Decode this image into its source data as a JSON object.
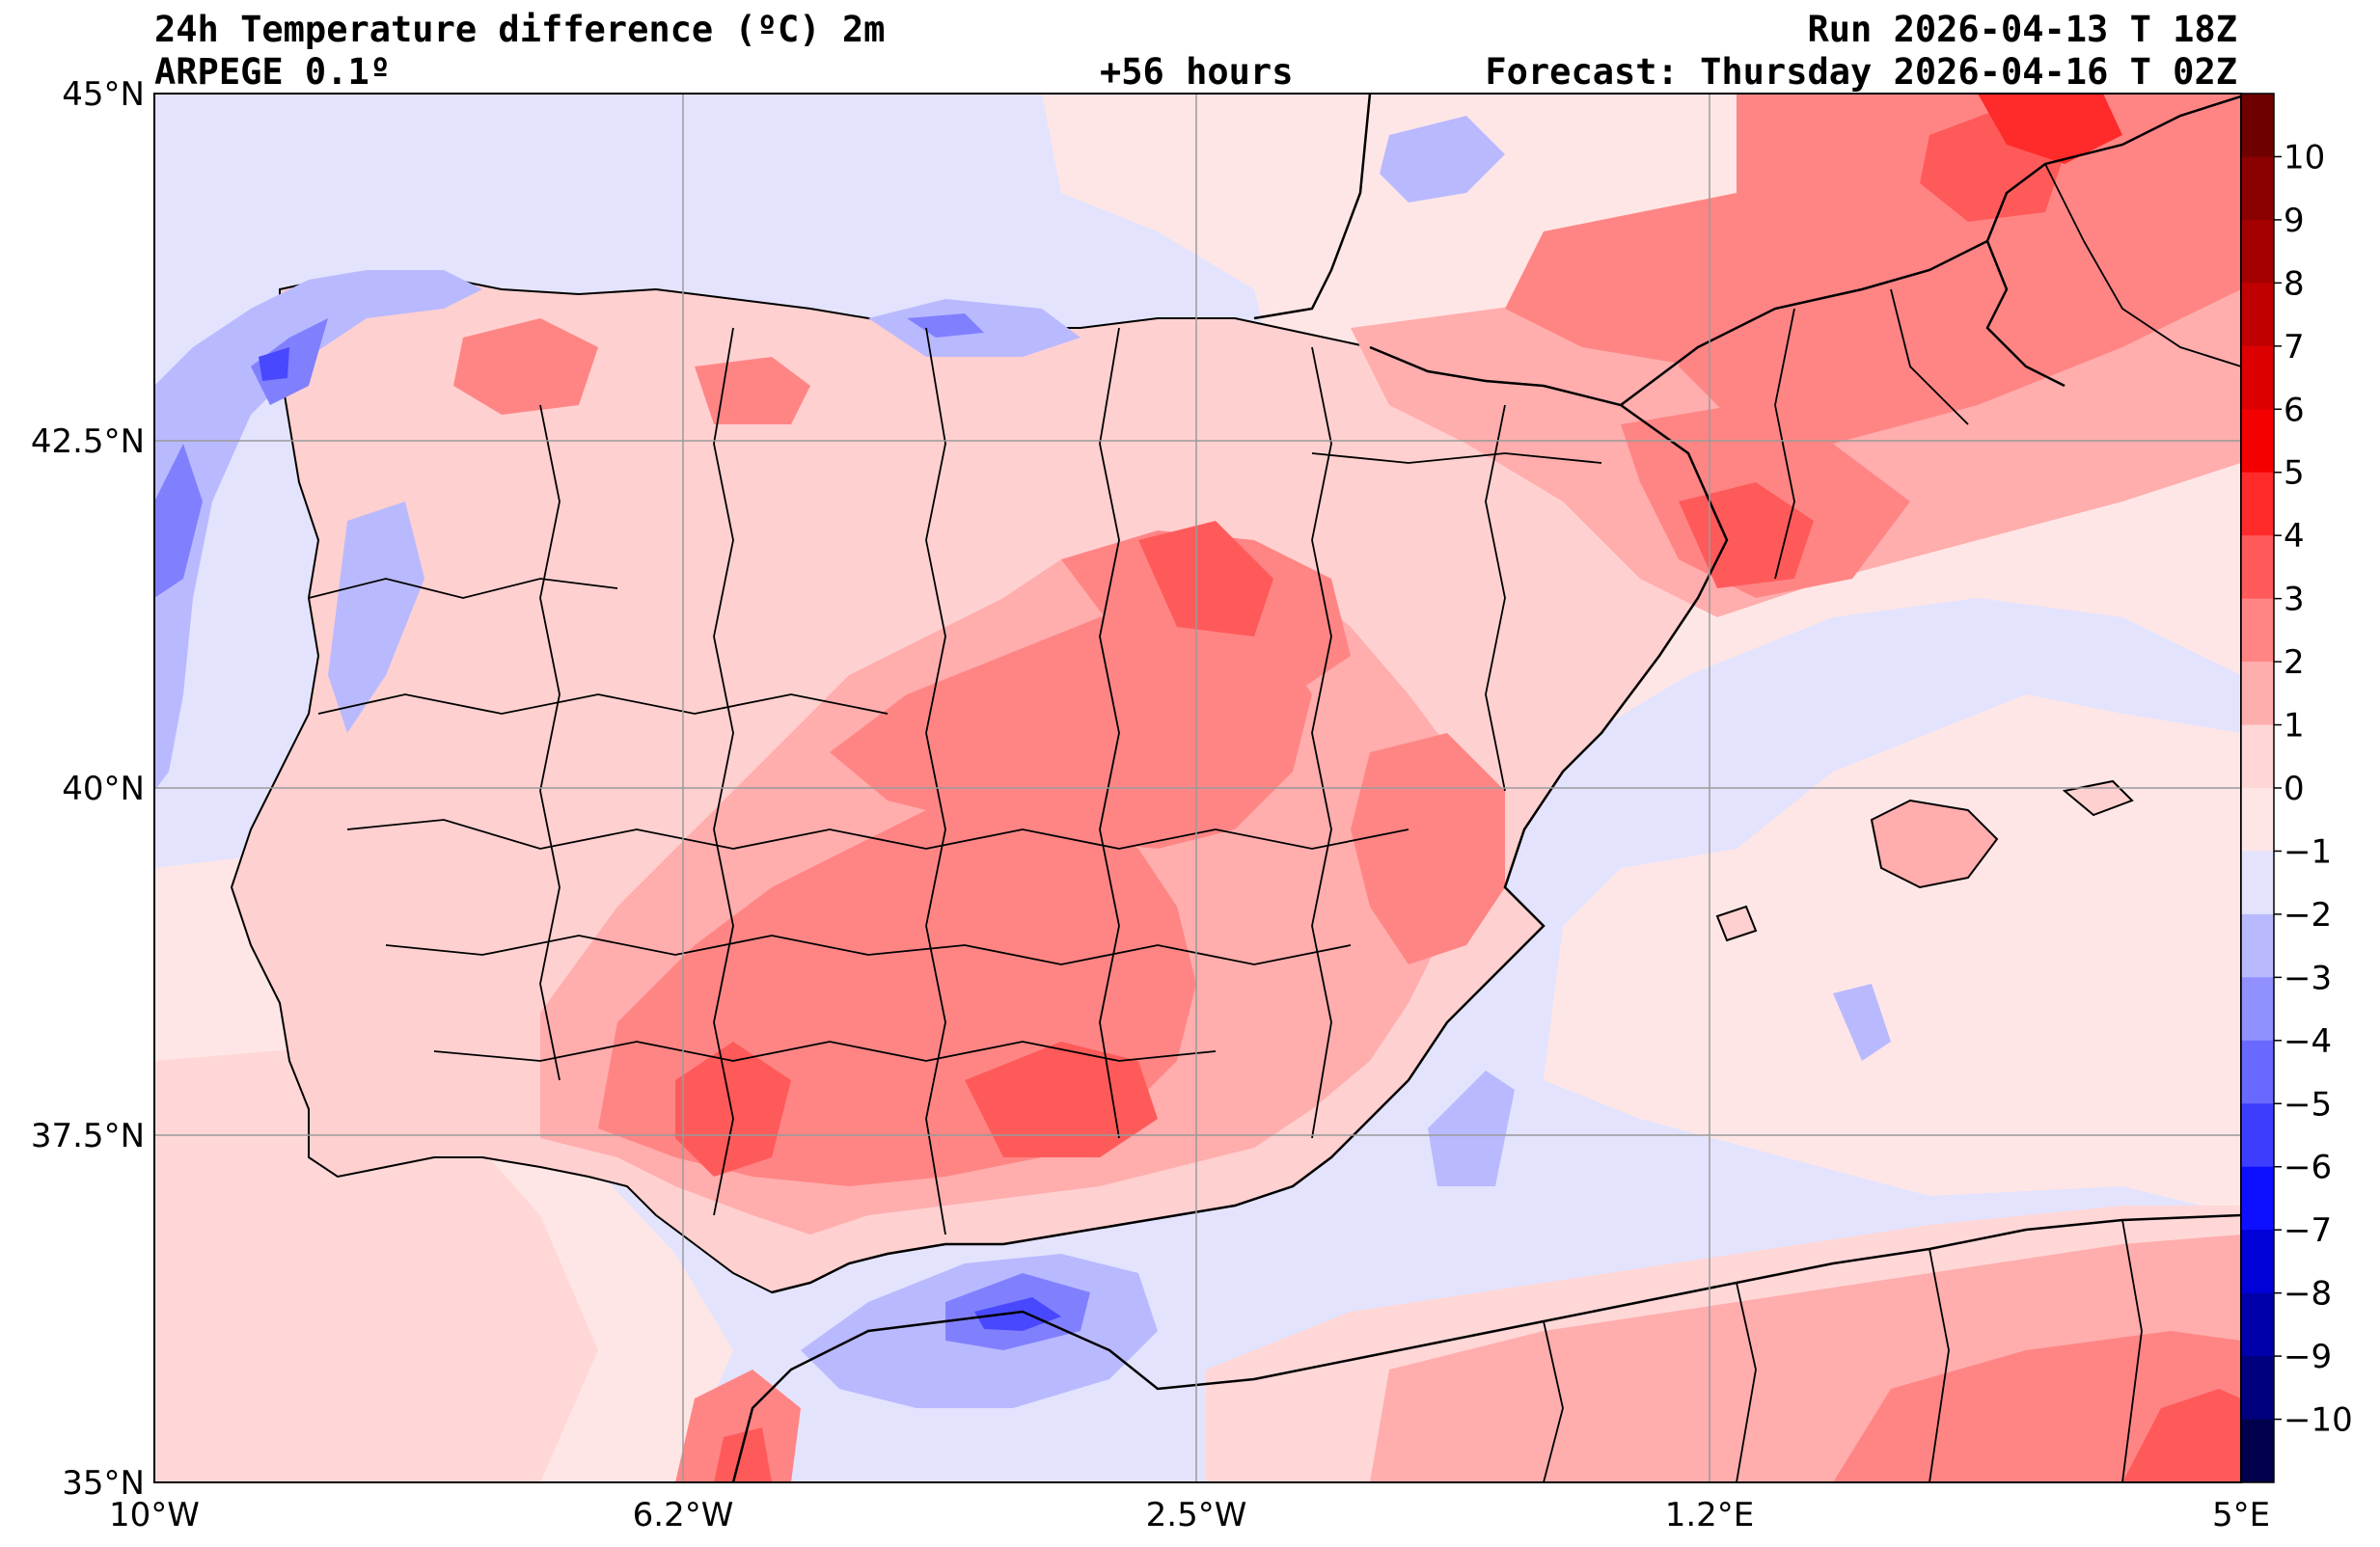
{
  "header": {
    "title_line1": "24h Temperature difference (ºC) 2m",
    "title_line2": "ARPEGE 0.1º",
    "lead": "+56 hours",
    "run": "Run 2026-04-13 T 18Z",
    "forecast": "Forecast: Thursday 2026-04-16 T 02Z"
  },
  "axes": {
    "lat_labels": [
      "45°N",
      "42.5°N",
      "40°N",
      "37.5°N",
      "35°N"
    ],
    "lon_labels": [
      "10°W",
      "6.2°W",
      "2.5°W",
      "1.2°E",
      "5°E"
    ]
  },
  "colorbar": {
    "labels": [
      "10",
      "9",
      "8",
      "7",
      "6",
      "5",
      "4",
      "3",
      "2",
      "1",
      "0",
      "−1",
      "−2",
      "−3",
      "−4",
      "−5",
      "−6",
      "−7",
      "−8",
      "−9",
      "−10"
    ],
    "colors": [
      "#6e0000",
      "#8b0000",
      "#a50000",
      "#c00000",
      "#dc0000",
      "#f50000",
      "#ff2a2a",
      "#ff5a5a",
      "#ff8585",
      "#ffaeae",
      "#ffd7d7",
      "#ffe6e6",
      "#e3e3fd",
      "#b9b9ff",
      "#9090ff",
      "#6969ff",
      "#3d3dff",
      "#0f0fff",
      "#0000d8",
      "#0000aa",
      "#00007e",
      "#00004d"
    ]
  },
  "palette": {
    "sea_neg": "#e3e3fd",
    "sea_pos": "#ffe6e6",
    "land_1": "#ffd0d0",
    "land_2": "#ffadad",
    "land_3": "#ff8585",
    "land_4": "#ff5a5a",
    "land_5": "#ff2a2a",
    "cold_1": "#b9b9ff",
    "cold_2": "#8080ff",
    "cold_3": "#4848ff",
    "coast": "#000000"
  }
}
